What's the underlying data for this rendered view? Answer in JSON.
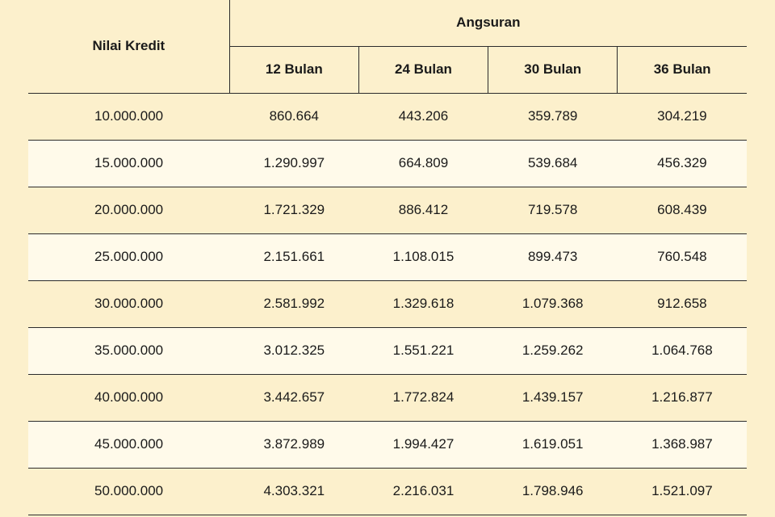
{
  "table": {
    "type": "table",
    "background_color": "#fcf0cc",
    "alt_row_color": "#fffaea",
    "border_color": "#2b2b2b",
    "header_fontweight": "700",
    "cell_fontsize": 17,
    "credit_header": "Nilai Kredit",
    "installment_header": "Angsuran",
    "terms": [
      "12 Bulan",
      "24 Bulan",
      "30 Bulan",
      "36 Bulan"
    ],
    "column_widths_pct": [
      28,
      18,
      18,
      18,
      18
    ],
    "rows": [
      {
        "credit": "10.000.000",
        "values": [
          "860.664",
          "443.206",
          "359.789",
          "304.219"
        ],
        "alt": false
      },
      {
        "credit": "15.000.000",
        "values": [
          "1.290.997",
          "664.809",
          "539.684",
          "456.329"
        ],
        "alt": true
      },
      {
        "credit": "20.000.000",
        "values": [
          "1.721.329",
          "886.412",
          "719.578",
          "608.439"
        ],
        "alt": false
      },
      {
        "credit": "25.000.000",
        "values": [
          "2.151.661",
          "1.108.015",
          "899.473",
          "760.548"
        ],
        "alt": true
      },
      {
        "credit": "30.000.000",
        "values": [
          "2.581.992",
          "1.329.618",
          "1.079.368",
          "912.658"
        ],
        "alt": false
      },
      {
        "credit": "35.000.000",
        "values": [
          "3.012.325",
          "1.551.221",
          "1.259.262",
          "1.064.768"
        ],
        "alt": true
      },
      {
        "credit": "40.000.000",
        "values": [
          "3.442.657",
          "1.772.824",
          "1.439.157",
          "1.216.877"
        ],
        "alt": false
      },
      {
        "credit": "45.000.000",
        "values": [
          "3.872.989",
          "1.994.427",
          "1.619.051",
          "1.368.987"
        ],
        "alt": true
      },
      {
        "credit": "50.000.000",
        "values": [
          "4.303.321",
          "2.216.031",
          "1.798.946",
          "1.521.097"
        ],
        "alt": false
      }
    ]
  }
}
